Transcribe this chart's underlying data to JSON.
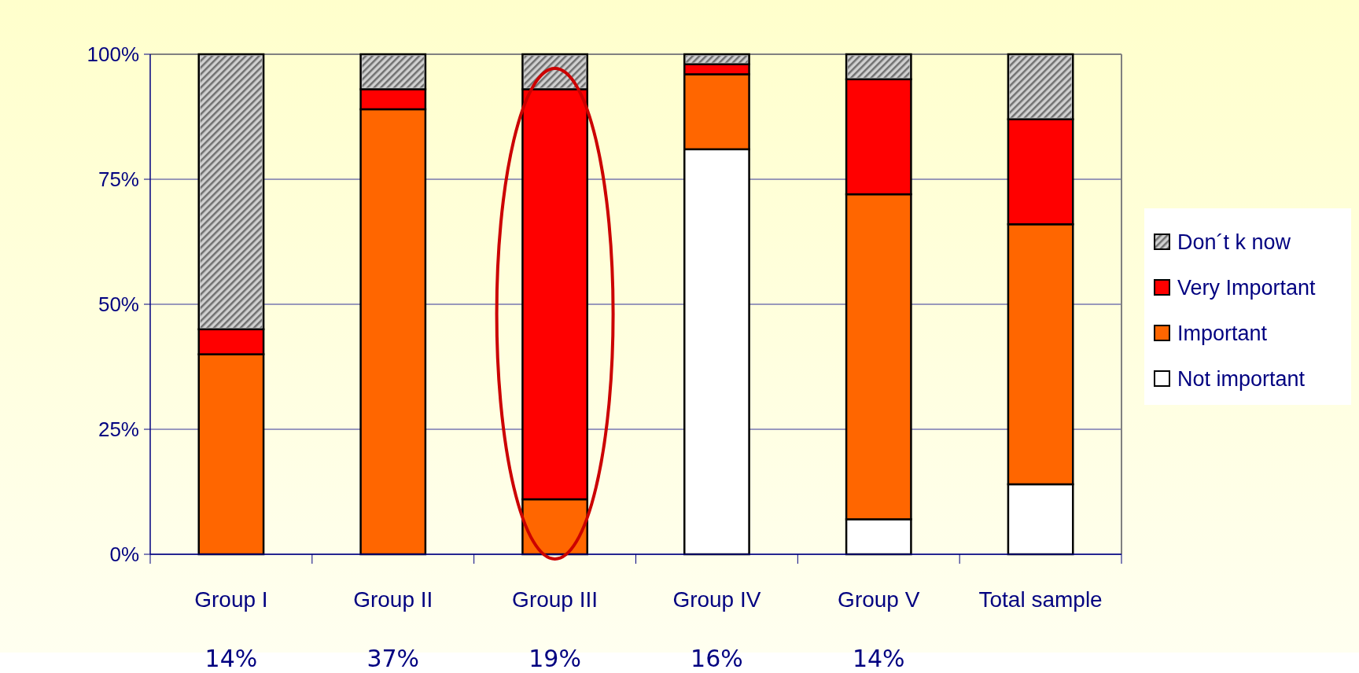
{
  "chart_data": {
    "type": "bar",
    "stacked": true,
    "categories": [
      "Group I",
      "Group II",
      "Group III",
      "Group IV",
      "Group V",
      "Total sample"
    ],
    "series": [
      {
        "name": "Not important",
        "color": "#ffffff",
        "values": [
          0,
          0,
          0,
          81,
          7,
          14
        ]
      },
      {
        "name": "Important",
        "color": "#ff6600",
        "values": [
          40,
          89,
          11,
          15,
          65,
          52
        ]
      },
      {
        "name": "Very Important",
        "color": "#ff0000",
        "values": [
          5,
          4,
          82,
          2,
          23,
          21
        ]
      },
      {
        "name": "Don´t k now",
        "color": "#d0d0d0",
        "values": [
          55,
          7,
          7,
          2,
          5,
          13
        ]
      }
    ],
    "ylim": [
      0,
      100
    ],
    "yticks": [
      {
        "value": 0,
        "label": "0%"
      },
      {
        "value": 25,
        "label": "25%"
      },
      {
        "value": 50,
        "label": "50%"
      },
      {
        "value": 75,
        "label": "75%"
      },
      {
        "value": 100,
        "label": "100%"
      }
    ],
    "grid": "y",
    "legend": "right",
    "annotations": [
      "14%",
      "37%",
      "19%",
      "16%",
      "14%"
    ]
  }
}
